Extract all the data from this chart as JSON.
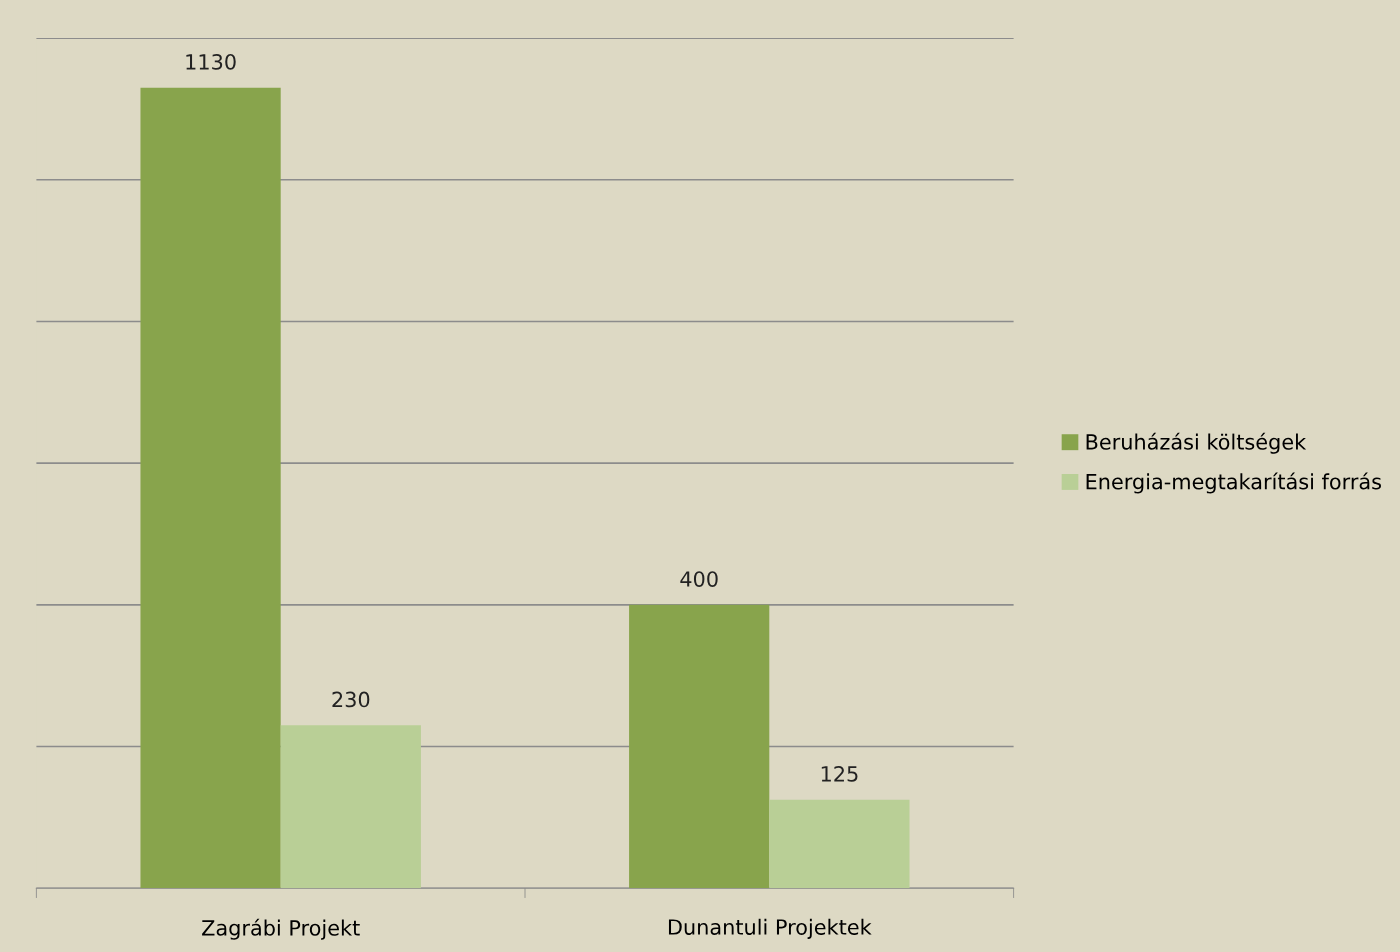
{
  "chart_data": {
    "type": "bar",
    "categories": [
      "Zagrábi Projekt",
      "Dunantuli Projektek"
    ],
    "series": [
      {
        "name": "Beruházási költségek",
        "color": "#88a44c",
        "values": [
          1130,
          400
        ]
      },
      {
        "name": "Energia-megtakarítási forrás",
        "color": "#b9cf96",
        "values": [
          230,
          125
        ]
      }
    ],
    "ylim": [
      0,
      1200
    ],
    "yticks": [
      {
        "value": 0,
        "label": null
      },
      {
        "value": 200,
        "label": null
      },
      {
        "value": 400,
        "label": null
      },
      {
        "value": 600,
        "label": null
      },
      {
        "value": 800,
        "label": null
      },
      {
        "value": 1000,
        "label": null
      },
      {
        "value": 1200,
        "label": null
      }
    ],
    "tick_labels": "x",
    "grid": "y",
    "data_labels": true,
    "legend": "right"
  }
}
